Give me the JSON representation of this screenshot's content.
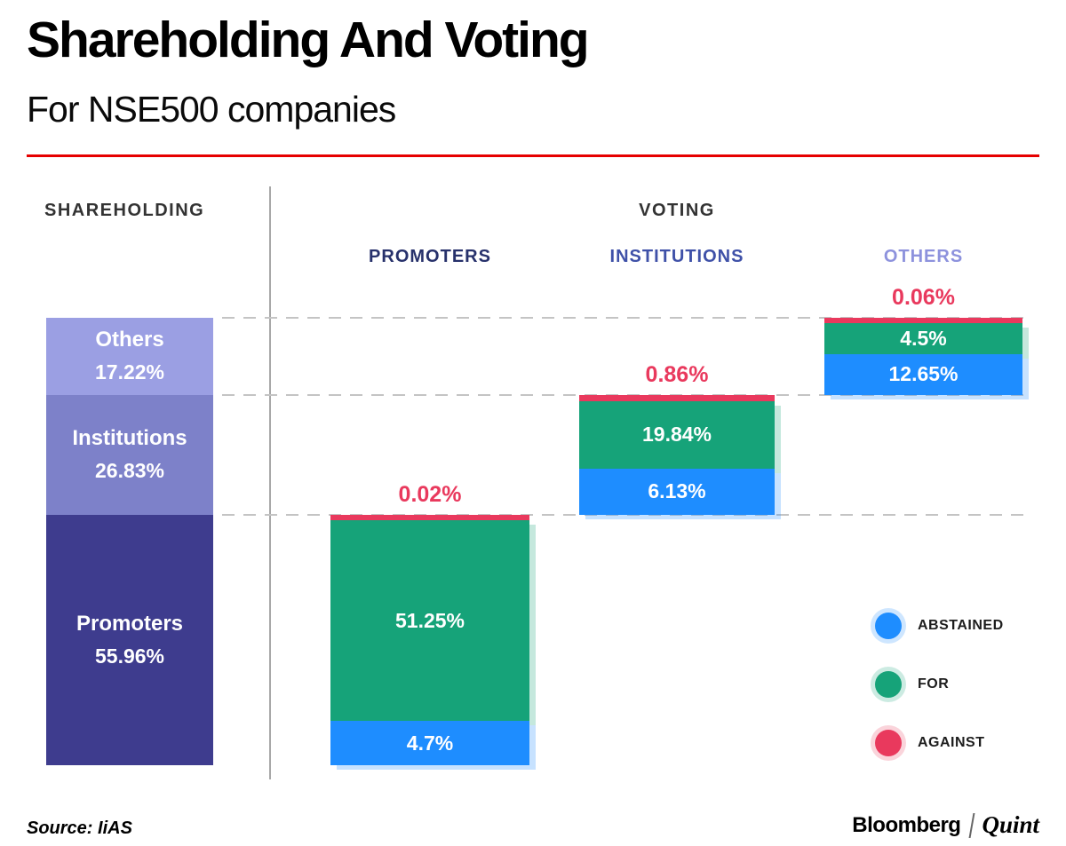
{
  "header": {
    "title": "Shareholding And Voting",
    "subtitle": "For NSE500 companies"
  },
  "colors": {
    "accent_rule": "#e60000",
    "against": "#e9395d",
    "for": "#16a379",
    "abstained": "#1e8dff",
    "grid": "#c4c4c4",
    "divider": "#a8a8a8"
  },
  "chart_data": {
    "type": "bar",
    "subtype": "stacked-percentage-comparison",
    "title": "Shareholding And Voting",
    "subtitle": "For NSE500 companies",
    "unit": "%",
    "ylim": [
      0,
      100
    ],
    "grid": "dashed-horizontal",
    "shareholding": {
      "label": "SHAREHOLDING",
      "total": 100,
      "segments": [
        {
          "name": "Others",
          "value": 17.22,
          "label": "17.22%",
          "color": "#9b9fe3"
        },
        {
          "name": "Institutions",
          "value": 26.83,
          "label": "26.83%",
          "color": "#7d81c9"
        },
        {
          "name": "Promoters",
          "value": 55.96,
          "label": "55.96%",
          "color": "#3e3c8e"
        }
      ]
    },
    "voting": {
      "label": "VOTING",
      "columns": [
        {
          "name": "PROMOTERS",
          "header_color": "#27316b",
          "against": {
            "value": 0.02,
            "label": "0.02%"
          },
          "for": {
            "value": 51.25,
            "label": "51.25%"
          },
          "abstained": {
            "value": 4.7,
            "label": "4.7%"
          }
        },
        {
          "name": "INSTITUTIONS",
          "header_color": "#3f51a8",
          "against": {
            "value": 0.86,
            "label": "0.86%"
          },
          "for": {
            "value": 19.84,
            "label": "19.84%"
          },
          "abstained": {
            "value": 6.13,
            "label": "6.13%"
          }
        },
        {
          "name": "OTHERS",
          "header_color": "#8d92dd",
          "against": {
            "value": 0.06,
            "label": "0.06%"
          },
          "for": {
            "value": 4.5,
            "label": "4.5%"
          },
          "abstained": {
            "value": 12.65,
            "label": "12.65%"
          }
        }
      ]
    },
    "legend": {
      "position": "bottom-right",
      "items": [
        {
          "label": "ABSTAINED",
          "color": "#1e8dff"
        },
        {
          "label": "FOR",
          "color": "#16a379"
        },
        {
          "label": "AGAINST",
          "color": "#e9395d"
        }
      ]
    }
  },
  "footer": {
    "source": "Source: IiAS",
    "brand_left": "Bloomberg",
    "brand_right": "Quint"
  }
}
